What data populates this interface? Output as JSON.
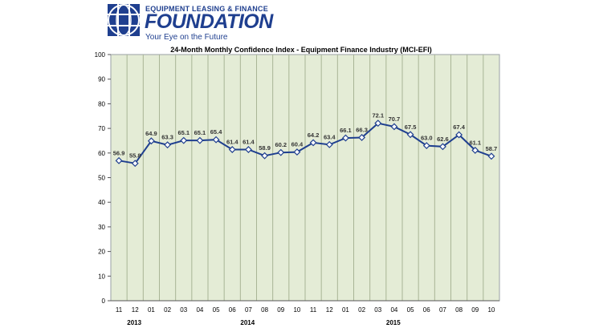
{
  "header": {
    "org_top": "EQUIPMENT LEASING & FINANCE",
    "org_main": "FOUNDATION",
    "tagline": "Your Eye on the Future"
  },
  "colors": {
    "plot_bg": "#e4ecd6",
    "line": "#1f3f8f",
    "brand": "#1f3f8f"
  },
  "chart_data": {
    "type": "line",
    "title": "24-Month Monthly Confidence Index - Equipment Finance Industry (MCI-EFI)",
    "categories": [
      "11",
      "12",
      "01",
      "02",
      "03",
      "04",
      "05",
      "06",
      "07",
      "08",
      "09",
      "10",
      "11",
      "12",
      "01",
      "02",
      "03",
      "04",
      "05",
      "06",
      "07",
      "08",
      "09",
      "10"
    ],
    "values": [
      56.9,
      55.8,
      64.9,
      63.3,
      65.1,
      65.1,
      65.4,
      61.4,
      61.4,
      58.9,
      60.2,
      60.4,
      64.2,
      63.4,
      66.1,
      66.3,
      72.1,
      70.7,
      67.5,
      63.0,
      62.6,
      67.4,
      61.1,
      58.7
    ],
    "year_labels": [
      {
        "label": "2013",
        "index": 1
      },
      {
        "label": "2014",
        "index": 8
      },
      {
        "label": "2015",
        "index": 17
      }
    ],
    "ylim": [
      0,
      100
    ],
    "yticks": [
      0,
      10,
      20,
      30,
      40,
      50,
      60,
      70,
      80,
      90,
      100
    ],
    "grid": true,
    "legend": "none"
  }
}
